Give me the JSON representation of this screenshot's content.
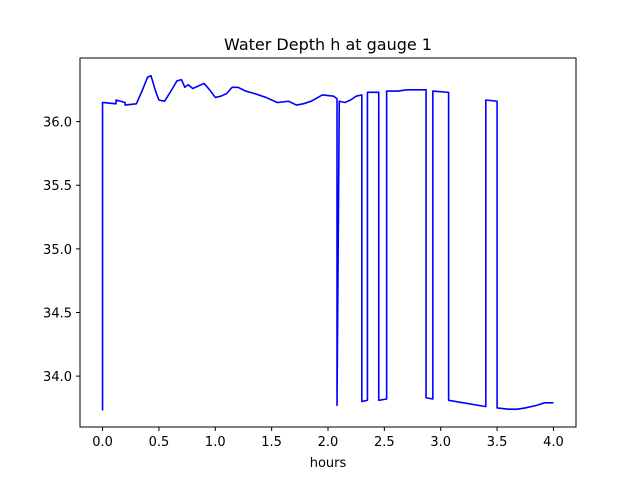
{
  "chart_data": {
    "type": "line",
    "title": "Water Depth h at gauge 1",
    "xlabel": "hours",
    "ylabel": "",
    "xlim": [
      -0.2,
      4.2
    ],
    "ylim": [
      33.6,
      36.5
    ],
    "xticks": [
      0.0,
      0.5,
      1.0,
      1.5,
      2.0,
      2.5,
      3.0,
      3.5,
      4.0
    ],
    "xtick_labels": [
      "0.0",
      "0.5",
      "1.0",
      "1.5",
      "2.0",
      "2.5",
      "3.0",
      "3.5",
      "4.0"
    ],
    "yticks": [
      34.0,
      34.5,
      35.0,
      35.5,
      36.0
    ],
    "ytick_labels": [
      "34.0",
      "34.5",
      "35.0",
      "35.5",
      "36.0"
    ],
    "grid": false,
    "legend": "none",
    "series": [
      {
        "color": "#0000ff",
        "x": [
          0.0,
          0.0,
          0.01,
          0.12,
          0.12,
          0.2,
          0.2,
          0.3,
          0.35,
          0.4,
          0.43,
          0.47,
          0.5,
          0.55,
          0.6,
          0.66,
          0.7,
          0.73,
          0.76,
          0.8,
          0.85,
          0.9,
          0.95,
          1.0,
          1.05,
          1.1,
          1.15,
          1.2,
          1.27,
          1.35,
          1.45,
          1.55,
          1.65,
          1.72,
          1.78,
          1.85,
          1.95,
          2.05,
          2.08,
          2.08,
          2.1,
          2.1,
          2.15,
          2.2,
          2.25,
          2.3,
          2.3,
          2.35,
          2.35,
          2.45,
          2.45,
          2.52,
          2.52,
          2.62,
          2.7,
          2.8,
          2.87,
          2.87,
          2.93,
          2.93,
          3.07,
          3.07,
          3.4,
          3.4,
          3.5,
          3.5,
          3.6,
          3.68,
          3.75,
          3.85,
          3.92,
          4.0
        ],
        "y": [
          33.73,
          36.15,
          36.15,
          36.14,
          36.17,
          36.15,
          36.13,
          36.14,
          36.24,
          36.35,
          36.36,
          36.24,
          36.17,
          36.16,
          36.23,
          36.32,
          36.33,
          36.27,
          36.29,
          36.26,
          36.28,
          36.3,
          36.25,
          36.19,
          36.2,
          36.22,
          36.27,
          36.27,
          36.24,
          36.22,
          36.19,
          36.15,
          36.16,
          36.13,
          36.14,
          36.16,
          36.21,
          36.2,
          36.18,
          33.77,
          36.16,
          36.16,
          36.15,
          36.17,
          36.2,
          36.21,
          33.8,
          33.81,
          36.23,
          36.23,
          33.81,
          33.82,
          36.24,
          36.24,
          36.25,
          36.25,
          36.25,
          33.83,
          33.82,
          36.24,
          36.23,
          33.81,
          33.76,
          36.17,
          36.16,
          33.75,
          33.74,
          33.74,
          33.75,
          33.77,
          33.79,
          33.79
        ]
      }
    ]
  }
}
